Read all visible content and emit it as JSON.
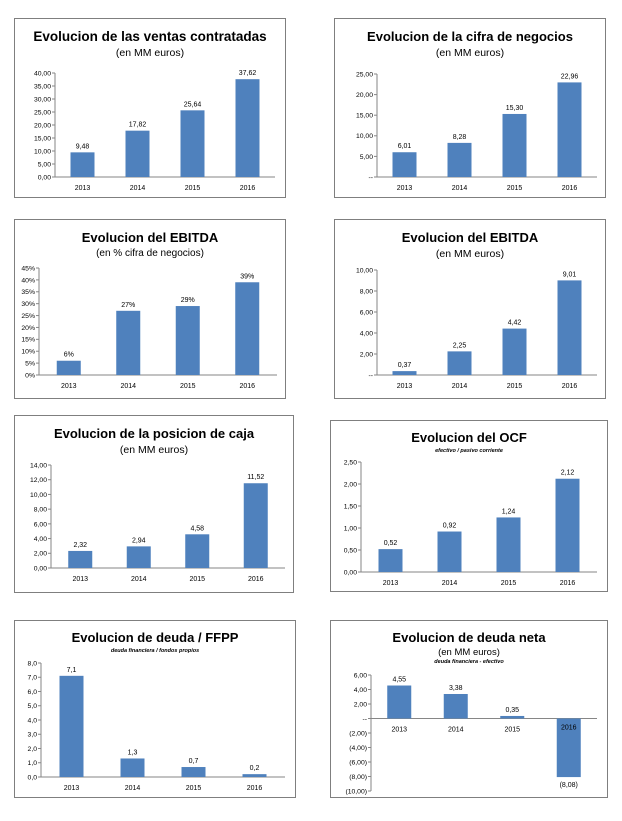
{
  "chart_data": [
    {
      "type": "bar",
      "title": "Evolucion de las ventas contratadas",
      "subtitle": "(en MM euros)",
      "categories": [
        "2013",
        "2014",
        "2015",
        "2016"
      ],
      "values": [
        9.48,
        17.82,
        25.64,
        37.62
      ],
      "value_labels": [
        "9,48",
        "17,82",
        "25,64",
        "37,62"
      ],
      "ylim": [
        0,
        40
      ],
      "yticks": [
        "0,00",
        "5,00",
        "10,00",
        "15,00",
        "20,00",
        "25,00",
        "30,00",
        "35,00",
        "40,00"
      ],
      "bar_color": "#4f81bd"
    },
    {
      "type": "bar",
      "title": "Evolucion de la cifra de negocios",
      "subtitle": "(en MM euros)",
      "categories": [
        "2013",
        "2014",
        "2015",
        "2016"
      ],
      "values": [
        6.01,
        8.28,
        15.3,
        22.96
      ],
      "value_labels": [
        "6,01",
        "8,28",
        "15,30",
        "22,96"
      ],
      "ylim": [
        0,
        25
      ],
      "yticks": [
        "--",
        "5,00",
        "10,00",
        "15,00",
        "20,00",
        "25,00"
      ],
      "bar_color": "#4f81bd"
    },
    {
      "type": "bar",
      "title": "Evolucion del EBITDA",
      "subtitle": "(en % cifra de negocios)",
      "categories": [
        "2013",
        "2014",
        "2015",
        "2016"
      ],
      "values": [
        6,
        27,
        29,
        39
      ],
      "value_labels": [
        "6%",
        "27%",
        "29%",
        "39%"
      ],
      "ylim": [
        0,
        45
      ],
      "yticks": [
        "0%",
        "5%",
        "10%",
        "15%",
        "20%",
        "25%",
        "30%",
        "35%",
        "40%",
        "45%"
      ],
      "bar_color": "#4f81bd"
    },
    {
      "type": "bar",
      "title": "Evolucion del EBITDA",
      "subtitle": "(en MM euros)",
      "categories": [
        "2013",
        "2014",
        "2015",
        "2016"
      ],
      "values": [
        0.37,
        2.25,
        4.42,
        9.01
      ],
      "value_labels": [
        "0,37",
        "2,25",
        "4,42",
        "9,01"
      ],
      "ylim": [
        0,
        10
      ],
      "yticks": [
        "--",
        "2,00",
        "4,00",
        "6,00",
        "8,00",
        "10,00"
      ],
      "bar_color": "#4f81bd"
    },
    {
      "type": "bar",
      "title": "Evolucion de la posicion de caja",
      "subtitle": "(en MM euros)",
      "categories": [
        "2013",
        "2014",
        "2015",
        "2016"
      ],
      "values": [
        2.32,
        2.94,
        4.58,
        11.52
      ],
      "value_labels": [
        "2,32",
        "2,94",
        "4,58",
        "11,52"
      ],
      "ylim": [
        0,
        14
      ],
      "yticks": [
        "0,00",
        "2,00",
        "4,00",
        "6,00",
        "8,00",
        "10,00",
        "12,00",
        "14,00"
      ],
      "bar_color": "#4f81bd"
    },
    {
      "type": "bar",
      "title": "Evolucion del OCF",
      "note": "efectivo / pasivo corriente",
      "categories": [
        "2013",
        "2014",
        "2015",
        "2016"
      ],
      "values": [
        0.52,
        0.92,
        1.24,
        2.12
      ],
      "value_labels": [
        "0,52",
        "0,92",
        "1,24",
        "2,12"
      ],
      "ylim": [
        0,
        2.5
      ],
      "yticks": [
        "0,00",
        "0,50",
        "1,00",
        "1,50",
        "2,00",
        "2,50"
      ],
      "bar_color": "#4f81bd"
    },
    {
      "type": "bar",
      "title": "Evolucion de deuda / FFPP",
      "note": "deuda financiera / fondos propios",
      "categories": [
        "2013",
        "2014",
        "2015",
        "2016"
      ],
      "values": [
        7.1,
        1.3,
        0.7,
        0.2
      ],
      "value_labels": [
        "7,1",
        "1,3",
        "0,7",
        "0,2"
      ],
      "ylim": [
        0,
        8
      ],
      "yticks": [
        "0,0",
        "1,0",
        "2,0",
        "3,0",
        "4,0",
        "5,0",
        "6,0",
        "7,0",
        "8,0"
      ],
      "bar_color": "#4f81bd"
    },
    {
      "type": "bar",
      "title": "Evolucion de deuda neta",
      "subtitle": "(en MM euros)",
      "note": "deuda financiera - efectivo",
      "categories": [
        "2013",
        "2014",
        "2015",
        "2016"
      ],
      "values": [
        4.55,
        3.38,
        0.35,
        -8.08
      ],
      "value_labels": [
        "4,55",
        "3,38",
        "0,35",
        "(8,08)"
      ],
      "ylim": [
        -10,
        6
      ],
      "yticks": [
        "(10,00)",
        "(8,00)",
        "(6,00)",
        "(4,00)",
        "(2,00)",
        "--",
        "2,00",
        "4,00",
        "6,00"
      ],
      "bar_color": "#4f81bd"
    }
  ]
}
